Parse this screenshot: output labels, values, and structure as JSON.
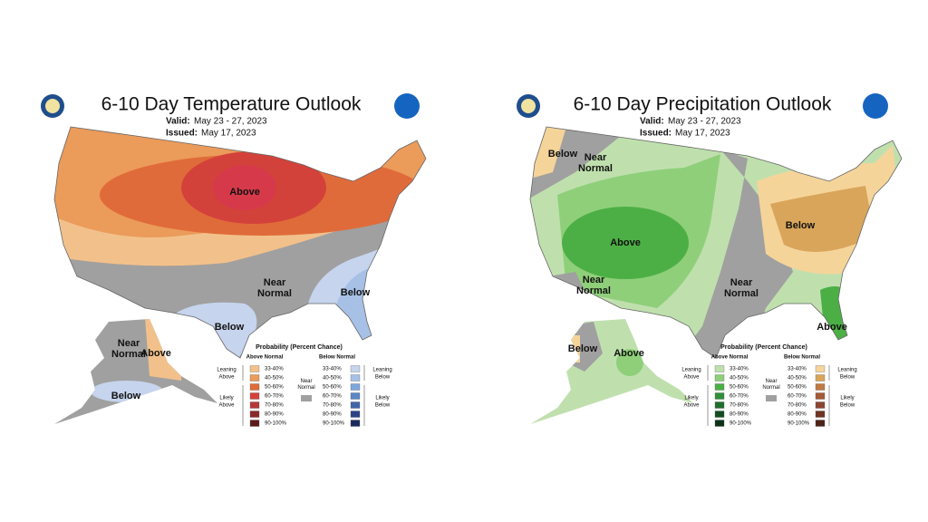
{
  "panels": [
    {
      "title": "6-10 Day Temperature Outlook",
      "valid_label": "Valid:",
      "valid": "May 23 - 27, 2023",
      "issued_label": "Issued:",
      "issued": "May 17, 2023",
      "map_labels": [
        "Above",
        [
          "Near",
          "Normal"
        ],
        "Below",
        "Below",
        [
          "Near",
          "Normal"
        ],
        "Above",
        "Below"
      ],
      "legend": {
        "title": "Probability (Percent Chance)",
        "left_header": "Above Normal",
        "right_header": "Below Normal",
        "ranges": [
          "33-40%",
          "40-50%",
          "50-60%",
          "60-70%",
          "70-80%",
          "80-90%",
          "90-100%"
        ],
        "left_colors": [
          "#f2c18b",
          "#eb9b5a",
          "#e06b3a",
          "#d3423a",
          "#b53838",
          "#8b2a2a",
          "#5c1a1a"
        ],
        "right_colors": [
          "#c6d4ee",
          "#a7c0e6",
          "#7ea6dc",
          "#5b86c7",
          "#4264a8",
          "#2c4286",
          "#1c2b5e"
        ],
        "near_normal": [
          "Near",
          "Normal"
        ],
        "near_color": "#a0a0a0",
        "leaning_left": [
          "Leaning",
          "Above"
        ],
        "likely_left": [
          "Likely",
          "Above"
        ],
        "leaning_right": [
          "Leaning",
          "Below"
        ],
        "likely_right": [
          "Likely",
          "Below"
        ]
      }
    },
    {
      "title": "6-10 Day Precipitation Outlook",
      "valid_label": "Valid:",
      "valid": "May 23 - 27, 2023",
      "issued_label": "Issued:",
      "issued": "May 17, 2023",
      "map_labels": [
        "Below",
        [
          "Near",
          "Normal"
        ],
        "Above",
        "Below",
        [
          "Near",
          "Normal"
        ],
        [
          "Near",
          "Normal"
        ],
        "Above",
        "Below",
        "Above"
      ],
      "legend": {
        "title": "Probability (Percent Chance)",
        "left_header": "Above Normal",
        "right_header": "Below Normal",
        "ranges": [
          "33-40%",
          "40-50%",
          "50-60%",
          "60-70%",
          "70-80%",
          "80-90%",
          "90-100%"
        ],
        "left_colors": [
          "#bfe0ad",
          "#8fcf7a",
          "#4caf45",
          "#2f8f3a",
          "#1f6e2e",
          "#154d22",
          "#0c3216"
        ],
        "right_colors": [
          "#f5d49a",
          "#d9a55a",
          "#c07a44",
          "#a65a36",
          "#8a4530",
          "#6e3424",
          "#4e2418"
        ],
        "near_normal": [
          "Near",
          "Normal"
        ],
        "near_color": "#a0a0a0",
        "leaning_left": [
          "Leaning",
          "Above"
        ],
        "likely_left": [
          "Likely",
          "Above"
        ],
        "leaning_right": [
          "Leaning",
          "Below"
        ],
        "likely_right": [
          "Likely",
          "Below"
        ]
      }
    }
  ]
}
